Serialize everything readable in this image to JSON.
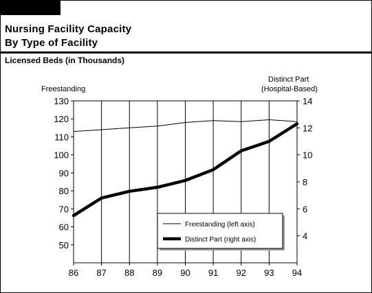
{
  "header": {
    "title_line1": "Nursing Facility Capacity",
    "title_line2": "By Type of Facility",
    "subtitle": "Licensed Beds (in Thousands)"
  },
  "chart_data": {
    "type": "line",
    "x": [
      "86",
      "87",
      "88",
      "89",
      "90",
      "91",
      "92",
      "93",
      "94"
    ],
    "left_axis": {
      "label": "Freestanding",
      "ylim": [
        40,
        130
      ],
      "ticks": [
        50,
        60,
        70,
        80,
        90,
        100,
        110,
        120,
        130
      ]
    },
    "right_axis": {
      "label_line1": "Distinct Part",
      "label_line2": "(Hospital-Based)",
      "ylim": [
        2,
        14
      ],
      "ticks": [
        4,
        6,
        8,
        10,
        12,
        14
      ]
    },
    "series": [
      {
        "name": "Freestanding (left axis)",
        "axis": "left",
        "color": "#000000",
        "style": "thin",
        "values": [
          113,
          114,
          115,
          116,
          118,
          119,
          118.5,
          119.5,
          118.5
        ]
      },
      {
        "name": "Distinct Part (right axis)",
        "axis": "right",
        "color": "#000000",
        "style": "thick",
        "values": [
          5.5,
          6.8,
          7.3,
          7.6,
          8.1,
          8.9,
          10.3,
          11.0,
          12.3
        ]
      }
    ],
    "grid": "vertical",
    "legend_position": "bottom-right"
  }
}
